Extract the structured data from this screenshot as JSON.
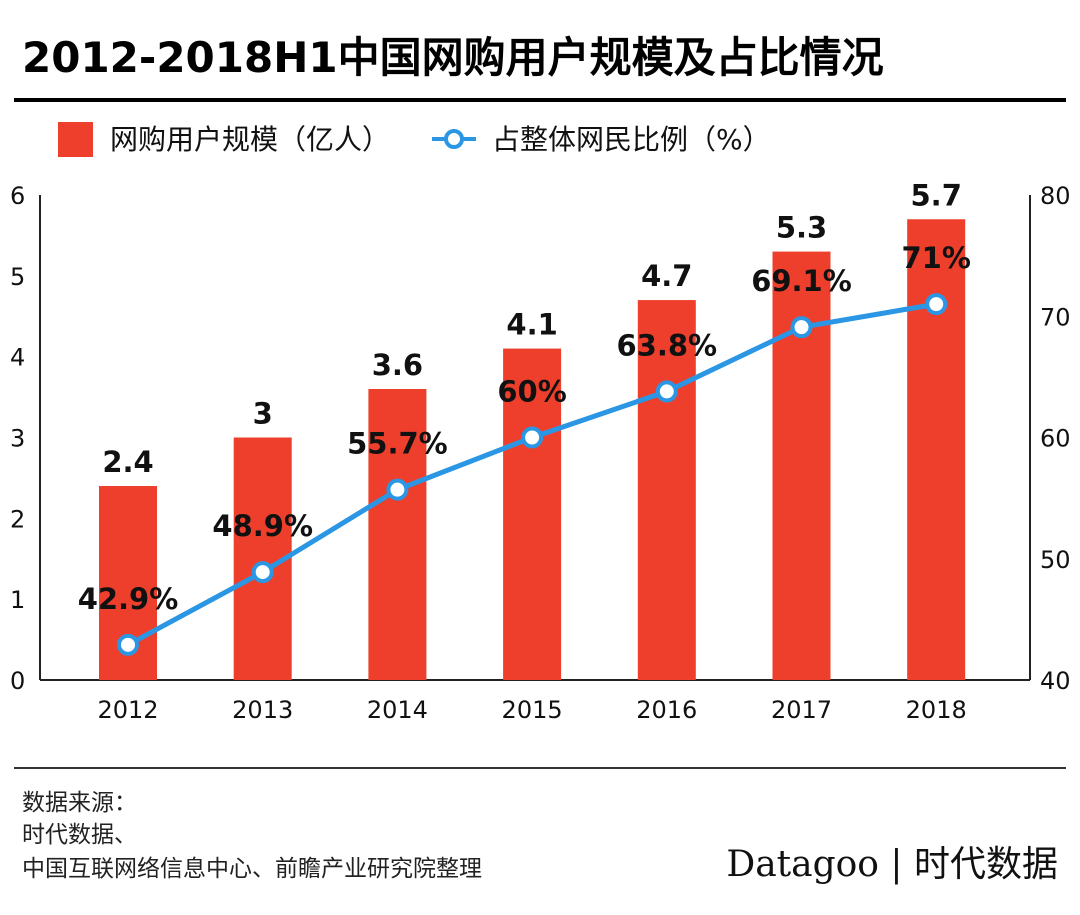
{
  "chart_data": {
    "type": "bar",
    "title": "2012-2018H1中国网购用户规模及占比情况",
    "categories": [
      "2012",
      "2013",
      "2014",
      "2015",
      "2016",
      "2017",
      "2018"
    ],
    "series": [
      {
        "name": "网购用户规模（亿人）",
        "type": "bar",
        "axis": "left",
        "values": [
          2.4,
          3,
          3.6,
          4.1,
          4.7,
          5.3,
          5.7
        ],
        "labels": [
          "2.4",
          "3",
          "3.6",
          "4.1",
          "4.7",
          "5.3",
          "5.7"
        ],
        "color": "#ee3f2c"
      },
      {
        "name": "占整体网民比例（%）",
        "type": "line",
        "axis": "right",
        "values": [
          42.9,
          48.9,
          55.7,
          60,
          63.8,
          69.1,
          71
        ],
        "labels": [
          "42.9%",
          "48.9%",
          "55.7%",
          "60%",
          "63.8%",
          "69.1%",
          "71%"
        ],
        "color": "#2a96e4"
      }
    ],
    "ylim_left": [
      0,
      6
    ],
    "yticks_left": [
      "0",
      "1",
      "2",
      "3",
      "4",
      "5",
      "6"
    ],
    "ylim_right": [
      40,
      80
    ],
    "yticks_right": [
      "40",
      "50",
      "60",
      "70",
      "80"
    ],
    "legend": "top-left",
    "grid": false
  },
  "footer": {
    "source_label": "数据来源：",
    "source_line1": "时代数据、",
    "source_line2": "中国互联网络信息中心、前瞻产业研究院整理",
    "logo": "Datagoo | 时代数据"
  }
}
